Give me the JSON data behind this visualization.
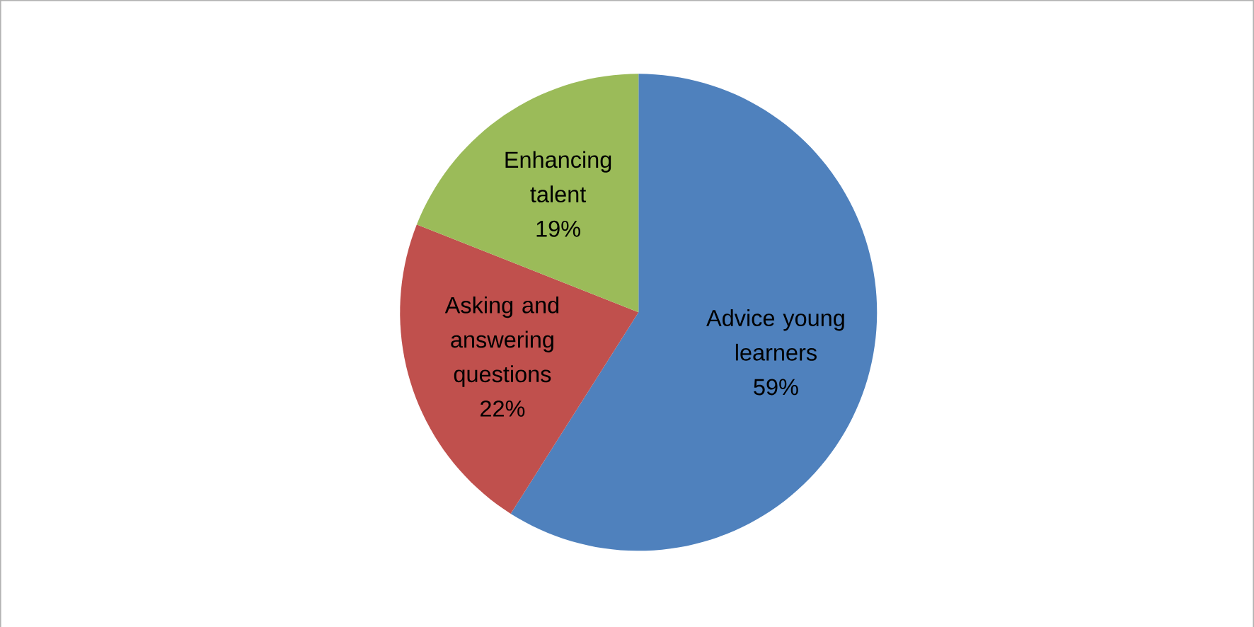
{
  "chart_data": {
    "type": "pie",
    "categories": [
      "Advice young learners",
      "Asking and answering questions",
      "Enhancing talent"
    ],
    "values": [
      59,
      22,
      19
    ],
    "value_labels": [
      "59%",
      "22%",
      "19%"
    ],
    "colors": [
      "#4f81bd",
      "#c0504d",
      "#9bbb59"
    ],
    "legend": false
  }
}
